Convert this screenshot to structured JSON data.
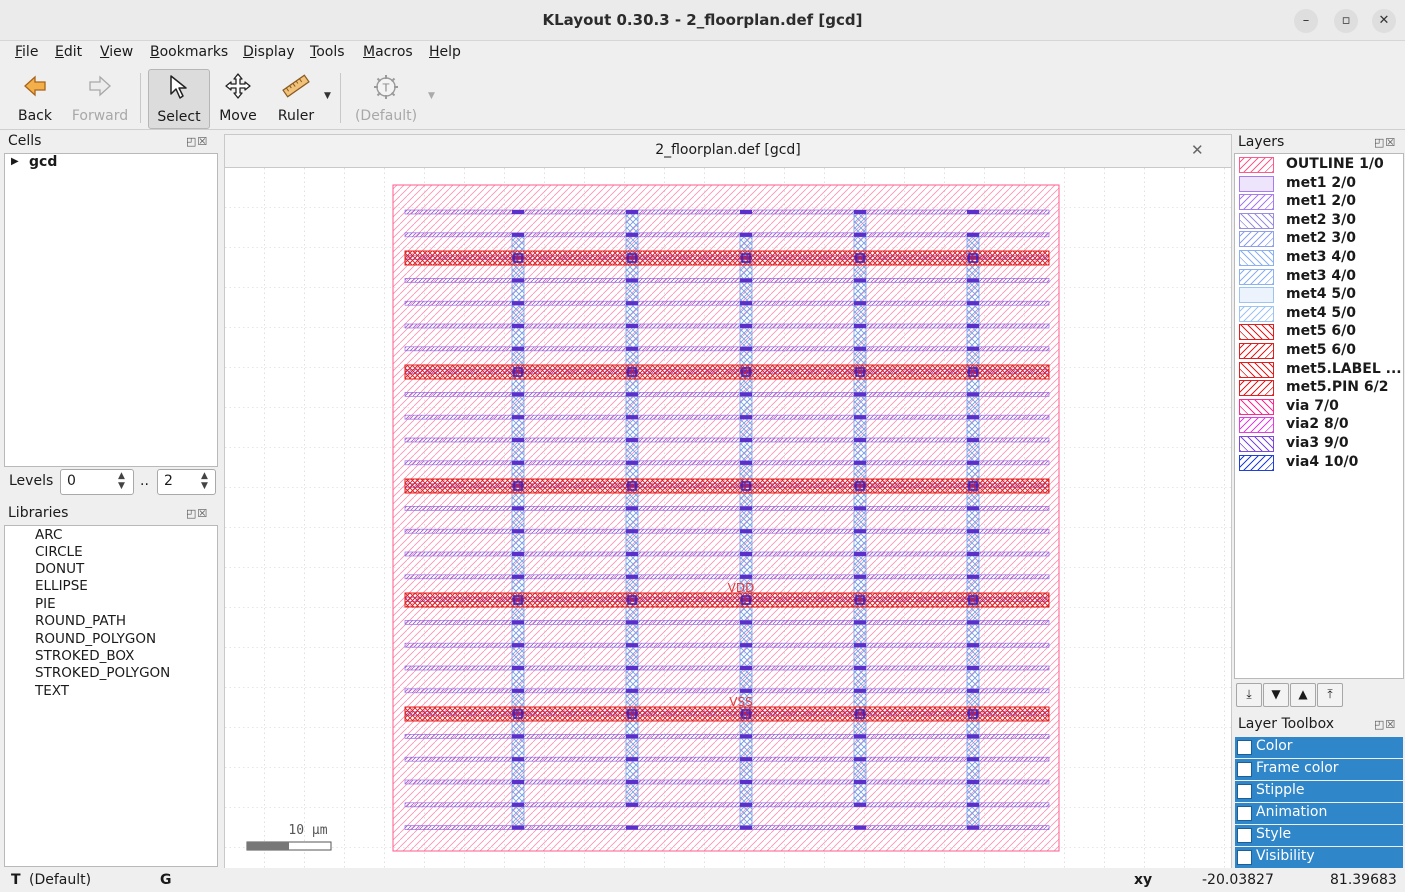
{
  "window": {
    "title": "KLayout 0.30.3 - 2_floorplan.def [gcd]",
    "minimize": "–",
    "maximize": "▫",
    "close": "✕"
  },
  "menu": [
    {
      "label": "File",
      "ul": "F",
      "rest": "ile"
    },
    {
      "label": "Edit",
      "ul": "E",
      "rest": "dit"
    },
    {
      "label": "View",
      "ul": "V",
      "rest": "iew"
    },
    {
      "label": "Bookmarks",
      "ul": "B",
      "rest": "ookmarks"
    },
    {
      "label": "Display",
      "ul": "D",
      "rest": "isplay"
    },
    {
      "label": "Tools",
      "ul": "T",
      "rest": "ools"
    },
    {
      "label": "Macros",
      "ul": "M",
      "rest": "acros"
    },
    {
      "label": "Help",
      "ul": "H",
      "rest": "elp"
    }
  ],
  "toolbar": {
    "back": "Back",
    "forward": "Forward",
    "select": "Select",
    "move": "Move",
    "ruler": "Ruler",
    "default": "(Default)"
  },
  "cells": {
    "header": "Cells",
    "items": [
      "gcd"
    ],
    "levels_label": "Levels",
    "level_min": "0",
    "level_sep": "..",
    "level_max": "2"
  },
  "libraries": {
    "header": "Libraries",
    "items": [
      "ARC",
      "CIRCLE",
      "DONUT",
      "ELLIPSE",
      "PIE",
      "ROUND_PATH",
      "ROUND_POLYGON",
      "STROKED_BOX",
      "STROKED_POLYGON",
      "TEXT"
    ]
  },
  "view": {
    "tab_title": "2_floorplan.def [gcd]",
    "close": "✕",
    "labels": {
      "vdd": "VDD",
      "vss": "VSS"
    },
    "scale_text": "10 μm"
  },
  "layers": {
    "header": "Layers",
    "items": [
      {
        "name": "OUTLINE 1/0",
        "color": "#ff5a8c",
        "pattern": "diag"
      },
      {
        "name": "met1 2/0",
        "color": "#a77cf0",
        "pattern": "solid"
      },
      {
        "name": "met1 2/0",
        "color": "#a77cf0",
        "pattern": "diag"
      },
      {
        "name": "met2 3/0",
        "color": "#9a8ee0",
        "pattern": "back"
      },
      {
        "name": "met2 3/0",
        "color": "#8fa0ec",
        "pattern": "diag"
      },
      {
        "name": "met3 4/0",
        "color": "#8db0f0",
        "pattern": "back"
      },
      {
        "name": "met3 4/0",
        "color": "#8db0f0",
        "pattern": "diag"
      },
      {
        "name": "met4 5/0",
        "color": "#9ec4f4",
        "pattern": "solid"
      },
      {
        "name": "met4 5/0",
        "color": "#9ec4f4",
        "pattern": "diag"
      },
      {
        "name": "met5 6/0",
        "color": "#e02020",
        "pattern": "back"
      },
      {
        "name": "met5 6/0",
        "color": "#e02020",
        "pattern": "diag"
      },
      {
        "name": "met5.LABEL ...",
        "color": "#e02020",
        "pattern": "back"
      },
      {
        "name": "met5.PIN 6/2",
        "color": "#e02020",
        "pattern": "diag"
      },
      {
        "name": "via 7/0",
        "color": "#ff2a90",
        "pattern": "back"
      },
      {
        "name": "via2 8/0",
        "color": "#e040e0",
        "pattern": "diag"
      },
      {
        "name": "via3 9/0",
        "color": "#7a4ad8",
        "pattern": "back"
      },
      {
        "name": "via4 10/0",
        "color": "#2040d8",
        "pattern": "diag"
      }
    ]
  },
  "layer_toolbox": {
    "header": "Layer Toolbox",
    "items": [
      "Color",
      "Frame color",
      "Stipple",
      "Animation",
      "Style",
      "Visibility"
    ]
  },
  "status": {
    "mode_key": "T",
    "mode_value": "(Default)",
    "grid_key": "G",
    "coord_key": "xy",
    "x": "-20.03827",
    "y": "81.39683"
  }
}
